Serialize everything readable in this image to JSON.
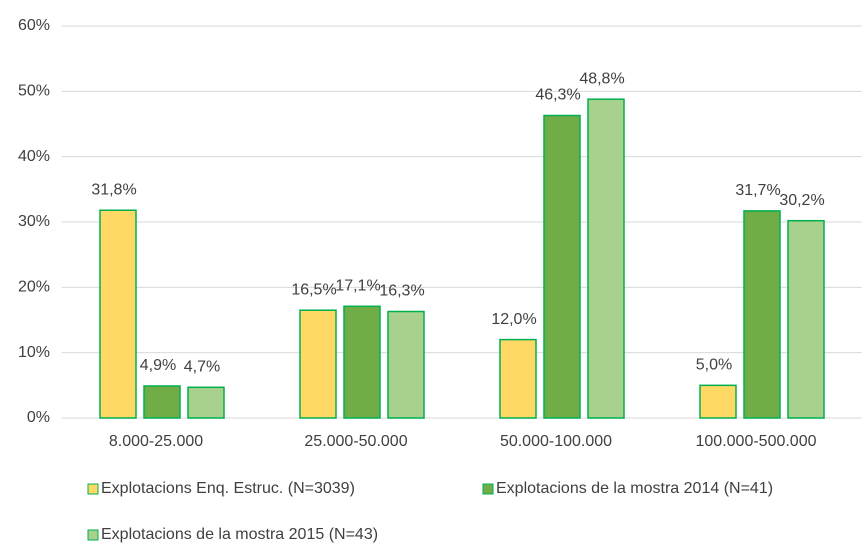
{
  "chart_data": {
    "type": "bar",
    "categories": [
      "8.000-25.000",
      "25.000-50.000",
      "50.000-100.000",
      "100.000-500.000"
    ],
    "series": [
      {
        "name": "Explotacions Enq. Estruc. (N=3039)",
        "color": "#FFD966",
        "values": [
          31.8,
          16.5,
          12.0,
          5.0
        ],
        "value_labels": [
          "31,8%",
          "16,5%",
          "12,0%",
          "5,0%"
        ]
      },
      {
        "name": "Explotacions de la mostra 2014 (N=41)",
        "color": "#70AD47",
        "values": [
          4.9,
          17.1,
          46.3,
          31.7
        ],
        "value_labels": [
          "4,9%",
          "17,1%",
          "46,3%",
          "31,7%"
        ]
      },
      {
        "name": "Explotacions de la mostra 2015 (N=43)",
        "color": "#A9D18E",
        "values": [
          4.7,
          16.3,
          48.8,
          30.2
        ],
        "value_labels": [
          "4,7%",
          "16,3%",
          "48,8%",
          "30,2%"
        ]
      }
    ],
    "border_color": "#00B050",
    "ylim": [
      0,
      60
    ],
    "yticks": [
      {
        "value": 0,
        "label": "0%"
      },
      {
        "value": 10,
        "label": "10%"
      },
      {
        "value": 20,
        "label": "20%"
      },
      {
        "value": 30,
        "label": "30%"
      },
      {
        "value": 40,
        "label": "40%"
      },
      {
        "value": 50,
        "label": "50%"
      },
      {
        "value": 60,
        "label": "60%"
      }
    ],
    "grid": true,
    "legend": "bottom"
  }
}
